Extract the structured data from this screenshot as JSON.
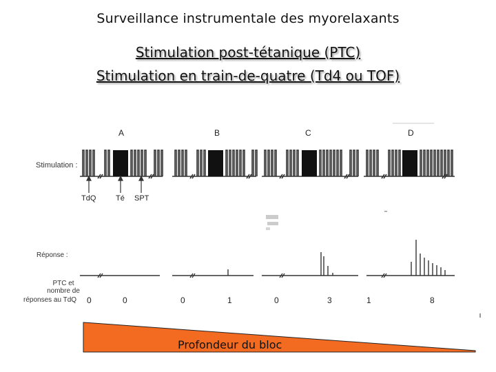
{
  "titles": {
    "main": "Surveillance instrumentale des myorelaxants",
    "line2": "Stimulation post-tétanique (PTC)",
    "line3": "Stimulation en train-de-quatre (Td4 ou TOF)"
  },
  "row_labels": {
    "stimulation": "Stimulation :",
    "response": "Réponse :",
    "ptc_1": "PTC et",
    "ptc_2": "nombre de",
    "ptc_3": "réponses au TdQ"
  },
  "panels": [
    "A",
    "B",
    "C",
    "D"
  ],
  "arrow_labels": [
    "TdQ",
    "Té",
    "SPT"
  ],
  "counts": [
    "0",
    "0",
    "0",
    "1",
    "0",
    "3",
    "1",
    "8"
  ],
  "depth_label": "Profondeur du bloc",
  "colors": {
    "wedge": "#f26b21",
    "line": "#333333"
  }
}
